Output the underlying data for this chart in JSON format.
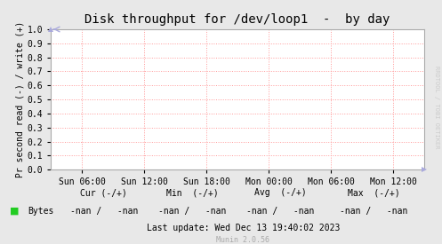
{
  "title": "Disk throughput for /dev/loop1  -  by day",
  "ylabel": "Pr second read (-) / write (+)",
  "background_color": "#e8e8e8",
  "plot_bg_color": "#ffffff",
  "grid_color": "#ff9999",
  "border_color": "#aaaaaa",
  "ylim": [
    0.0,
    1.0
  ],
  "yticks": [
    0.0,
    0.1,
    0.2,
    0.3,
    0.4,
    0.5,
    0.6,
    0.7,
    0.8,
    0.9,
    1.0
  ],
  "xtick_labels": [
    "Sun 06:00",
    "Sun 12:00",
    "Sun 18:00",
    "Mon 00:00",
    "Mon 06:00",
    "Mon 12:00"
  ],
  "xtick_positions": [
    0.0833,
    0.25,
    0.4167,
    0.5833,
    0.75,
    0.9167
  ],
  "legend_color": "#22cc22",
  "legend_label": "Bytes",
  "cur_label": "Cur (-/+)",
  "min_label": "Min  (-/+)",
  "avg_label": "Avg  (-/+)",
  "max_label": "Max  (-/+)",
  "cur_val": "-nan /   -nan",
  "min_val": "-nan /   -nan",
  "avg_val": "-nan /   -nan",
  "max_val": "-nan /   -nan",
  "last_update": "Last update: Wed Dec 13 19:40:02 2023",
  "munin_version": "Munin 2.0.56",
  "watermark": "RRDTOOL / TOBI OETIKER",
  "title_fontsize": 10,
  "axis_fontsize": 7,
  "legend_fontsize": 7,
  "small_fontsize": 6,
  "watermark_fontsize": 5
}
